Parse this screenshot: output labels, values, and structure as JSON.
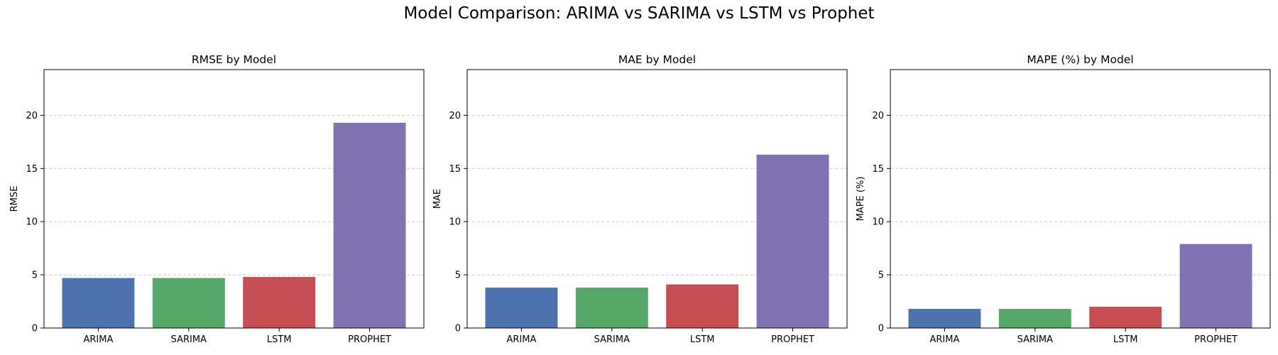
{
  "suptitle": "Model Comparison: ARIMA vs SARIMA vs LSTM vs Prophet",
  "colors": {
    "bars": [
      "#4c72b0",
      "#55a868",
      "#c44e52",
      "#8172b2"
    ]
  },
  "chart_data": [
    {
      "type": "bar",
      "title": "RMSE by Model",
      "xlabel": "",
      "ylabel": "RMSE",
      "categories": [
        "ARIMA",
        "SARIMA",
        "LSTM",
        "PROPHET"
      ],
      "values": [
        4.7,
        4.7,
        4.8,
        19.3
      ],
      "ylim": [
        0,
        24.3
      ],
      "yticks": [
        0,
        5,
        10,
        15,
        20
      ],
      "grid": "y-dashed",
      "legend": "none"
    },
    {
      "type": "bar",
      "title": "MAE by Model",
      "xlabel": "",
      "ylabel": "MAE",
      "categories": [
        "ARIMA",
        "SARIMA",
        "LSTM",
        "PROPHET"
      ],
      "values": [
        3.8,
        3.8,
        4.1,
        16.3
      ],
      "ylim": [
        0,
        24.3
      ],
      "yticks": [
        0,
        5,
        10,
        15,
        20
      ],
      "grid": "y-dashed",
      "legend": "none"
    },
    {
      "type": "bar",
      "title": "MAPE (%) by Model",
      "xlabel": "",
      "ylabel": "MAPE (%)",
      "categories": [
        "ARIMA",
        "SARIMA",
        "LSTM",
        "PROPHET"
      ],
      "values": [
        1.8,
        1.8,
        2.0,
        7.9
      ],
      "ylim": [
        0,
        24.3
      ],
      "yticks": [
        0,
        5,
        10,
        15,
        20
      ],
      "grid": "y-dashed",
      "legend": "none"
    }
  ]
}
